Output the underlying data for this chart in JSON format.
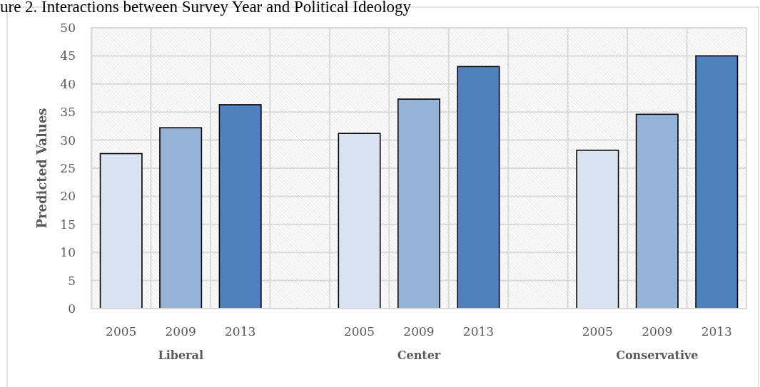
{
  "chart_data": {
    "type": "bar",
    "title": "ure 2. Interactions between Survey Year and Political Ideology",
    "ylabel": "Predicted Values",
    "categories": [
      "Liberal",
      "Center",
      "Conservative"
    ],
    "series": [
      {
        "name": "2005",
        "color": "#dae3f1",
        "values": [
          27.6,
          31.2,
          28.2
        ]
      },
      {
        "name": "2009",
        "color": "#95b3d7",
        "values": [
          32.2,
          37.3,
          34.6
        ]
      },
      {
        "name": "2013",
        "color": "#4f81bd",
        "values": [
          36.3,
          43.1,
          45.0
        ]
      }
    ],
    "ylim": [
      0,
      50
    ],
    "yticks": [
      0,
      5,
      10,
      15,
      20,
      25,
      30,
      35,
      40,
      45,
      50
    ],
    "grid": true
  }
}
